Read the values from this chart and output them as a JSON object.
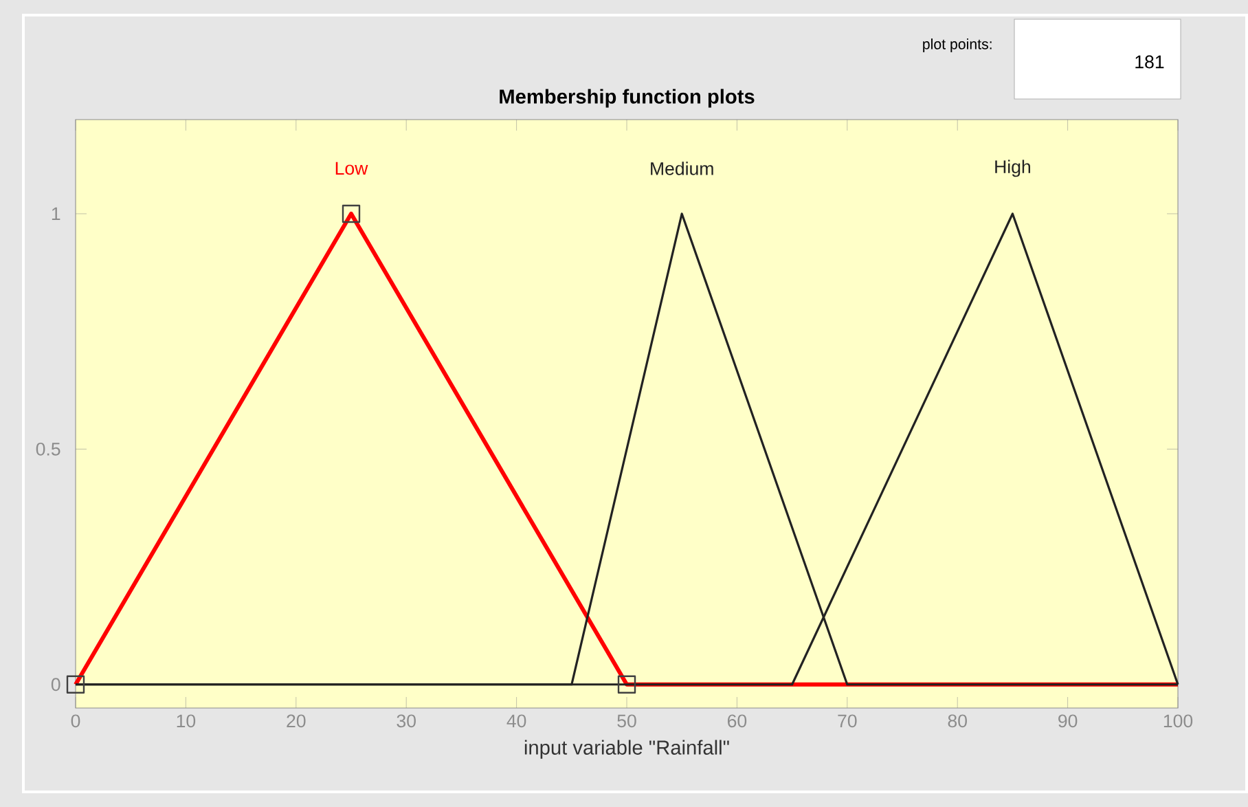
{
  "chart_data": {
    "type": "line",
    "title": "Membership function plots",
    "xlabel": "input variable \"Rainfall\"",
    "annotations": [
      "plot points:",
      "181"
    ],
    "xlim": [
      0,
      100
    ],
    "ylim": [
      -0.05,
      1.2
    ],
    "xticks": [
      0,
      10,
      20,
      30,
      40,
      50,
      60,
      70,
      80,
      90,
      100
    ],
    "yticks": [
      0,
      0.5,
      1
    ],
    "grid": false,
    "legend": false,
    "series": [
      {
        "name": "Low",
        "color": "#ff0000",
        "x": [
          0,
          25,
          50,
          100
        ],
        "values": [
          0,
          1,
          0,
          0
        ],
        "marker": "square"
      },
      {
        "name": "Medium",
        "color": "#222222",
        "x": [
          0,
          45,
          55,
          70,
          100
        ],
        "values": [
          0,
          0,
          1,
          0,
          0
        ],
        "marker": "none"
      },
      {
        "name": "High",
        "color": "#222222",
        "x": [
          0,
          65,
          85,
          100
        ],
        "values": [
          0,
          0,
          1,
          0
        ],
        "marker": "none"
      }
    ]
  }
}
